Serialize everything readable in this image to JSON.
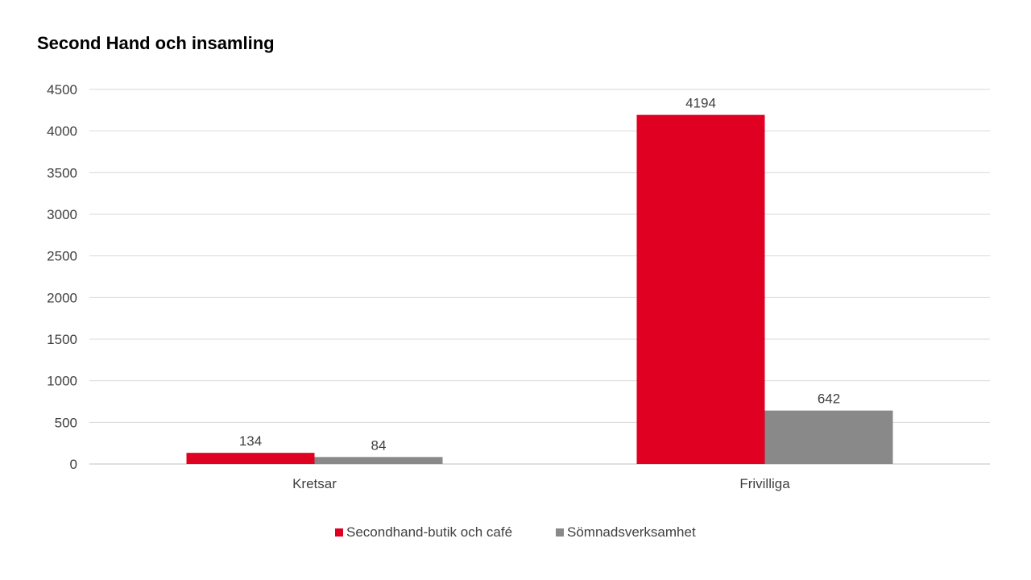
{
  "chart_data": {
    "type": "bar",
    "title": "Second Hand och insamling",
    "categories": [
      "Kretsar",
      "Frivilliga"
    ],
    "series": [
      {
        "name": "Secondhand-butik och café",
        "values": [
          134,
          4194
        ],
        "color": "#E00022"
      },
      {
        "name": "Sömnadsverksamhet",
        "values": [
          84,
          642
        ],
        "color": "#898989"
      }
    ],
    "ylim": [
      0,
      4500
    ],
    "yticks": [
      0,
      500,
      1000,
      1500,
      2000,
      2500,
      3000,
      3500,
      4000,
      4500
    ],
    "grid": true,
    "legend": "bottom",
    "data_labels": true
  }
}
